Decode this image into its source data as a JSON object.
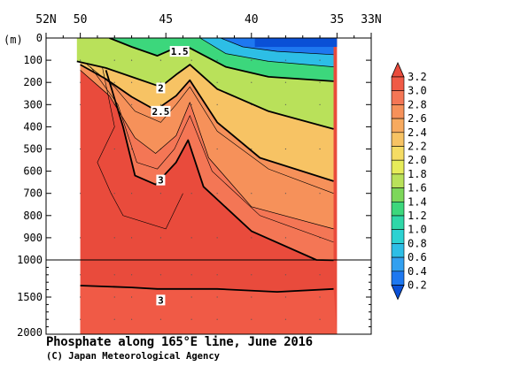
{
  "chart_data": {
    "type": "heatmap",
    "title": "Phosphate along 165°E line, June 2016",
    "credit": "(C) Japan Meteorological Agency",
    "x": {
      "ticks": [
        "52N",
        "50",
        "45",
        "40",
        "35",
        "33N"
      ],
      "tick_values": [
        52,
        50,
        45,
        40,
        35,
        33
      ],
      "range": [
        52,
        33
      ]
    },
    "y": {
      "unit": "(m)",
      "upper_ticks": [
        0,
        100,
        200,
        300,
        400,
        500,
        600,
        700,
        800,
        900,
        1000
      ],
      "lower_ticks": [
        1000,
        1500,
        2000
      ],
      "range": [
        0,
        2000
      ],
      "break_depth": 1000
    },
    "colorbar": {
      "levels": [
        0.2,
        0.4,
        0.6,
        0.8,
        1.0,
        1.2,
        1.4,
        1.6,
        1.8,
        2.0,
        2.2,
        2.4,
        2.6,
        2.8,
        3.0,
        3.2
      ],
      "labels": [
        "0.2",
        "0.4",
        "0.6",
        "0.8",
        "1.0",
        "1.2",
        "1.4",
        "1.6",
        "1.8",
        "2.0",
        "2.2",
        "2.4",
        "2.6",
        "2.8",
        "3.0",
        "3.2"
      ],
      "colors": [
        "#0a50d6",
        "#1e78f0",
        "#32a0f0",
        "#2dbee6",
        "#2cd2d2",
        "#2fd7a8",
        "#3cd77c",
        "#7dd75a",
        "#b9e15a",
        "#e6ec5a",
        "#f5dc64",
        "#f7c364",
        "#f7aa5f",
        "#f6915a",
        "#f47655",
        "#f05a46",
        "#e94b3c"
      ]
    },
    "contour_labels": [
      {
        "text": "1.5",
        "lat": 44.2,
        "depth": 60
      },
      {
        "text": "2",
        "lat": 45.3,
        "depth": 225
      },
      {
        "text": "2.5",
        "lat": 45.3,
        "depth": 330
      },
      {
        "text": "3",
        "lat": 45.3,
        "depth": 640
      },
      {
        "text": "3",
        "lat": 45.3,
        "depth": 1540
      }
    ],
    "contours": [
      {
        "level": 0.6,
        "bold": false,
        "pts": [
          [
            41.8,
            0
          ],
          [
            40.5,
            40
          ],
          [
            38.5,
            60
          ],
          [
            35.2,
            75
          ]
        ]
      },
      {
        "level": 1.0,
        "bold": false,
        "pts": [
          [
            43.0,
            0
          ],
          [
            41.5,
            70
          ],
          [
            39.0,
            105
          ],
          [
            35.2,
            130
          ]
        ]
      },
      {
        "level": 1.5,
        "bold": true,
        "pts": [
          [
            48.3,
            0
          ],
          [
            47.0,
            40
          ],
          [
            45.5,
            80
          ],
          [
            44.3,
            40
          ],
          [
            43.6,
            45
          ],
          [
            41.5,
            130
          ],
          [
            39.0,
            175
          ],
          [
            35.2,
            195
          ]
        ]
      },
      {
        "level": 2.0,
        "bold": true,
        "pts": [
          [
            50.2,
            105
          ],
          [
            48.5,
            135
          ],
          [
            47.0,
            175
          ],
          [
            45.3,
            220
          ],
          [
            44.4,
            165
          ],
          [
            43.6,
            120
          ],
          [
            42.0,
            230
          ],
          [
            39.0,
            330
          ],
          [
            35.2,
            410
          ]
        ]
      },
      {
        "level": 2.5,
        "bold": true,
        "pts": [
          [
            50.0,
            120
          ],
          [
            48.5,
            185
          ],
          [
            47.0,
            265
          ],
          [
            45.6,
            325
          ],
          [
            44.4,
            260
          ],
          [
            43.6,
            190
          ],
          [
            42.0,
            380
          ],
          [
            39.5,
            540
          ],
          [
            35.2,
            645
          ]
        ]
      },
      {
        "level": 2.8,
        "bold": false,
        "pts": [
          [
            50.0,
            145
          ],
          [
            48.3,
            260
          ],
          [
            46.8,
            450
          ],
          [
            45.6,
            520
          ],
          [
            44.4,
            440
          ],
          [
            43.6,
            290
          ],
          [
            42.5,
            540
          ],
          [
            40.0,
            760
          ],
          [
            35.2,
            860
          ]
        ]
      },
      {
        "level": 3.0,
        "bold": true,
        "pts": [
          [
            48.5,
            145
          ],
          [
            47.5,
            400
          ],
          [
            46.8,
            620
          ],
          [
            45.6,
            660
          ],
          [
            44.4,
            560
          ],
          [
            43.7,
            460
          ],
          [
            42.8,
            670
          ],
          [
            40.0,
            870
          ],
          [
            36.2,
            1000
          ],
          [
            35.2,
            1005
          ]
        ]
      },
      {
        "level": 3.0,
        "bold": true,
        "pts": [
          [
            50.0,
            1345
          ],
          [
            47.0,
            1370
          ],
          [
            45.5,
            1390
          ],
          [
            42.0,
            1390
          ],
          [
            38.5,
            1430
          ],
          [
            35.2,
            1390
          ]
        ]
      }
    ]
  }
}
